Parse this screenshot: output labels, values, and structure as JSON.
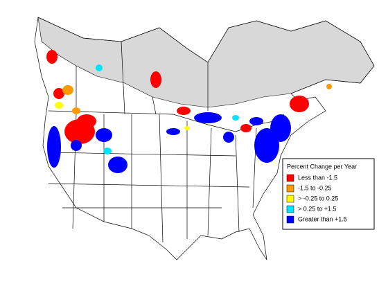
{
  "legend": {
    "title": "Percent Change per Year",
    "items": [
      {
        "label": "Less than -1.5",
        "color": "#ff0000"
      },
      {
        "label": "-1.5 to -0.25",
        "color": "#ff9900"
      },
      {
        "label": "> -0.25 to 0.25",
        "color": "#ffff00"
      },
      {
        "label": "> 0.25 to +1.5",
        "color": "#00e5ff"
      },
      {
        "label": "Greater than +1.5",
        "color": "#0000ff"
      }
    ]
  }
}
